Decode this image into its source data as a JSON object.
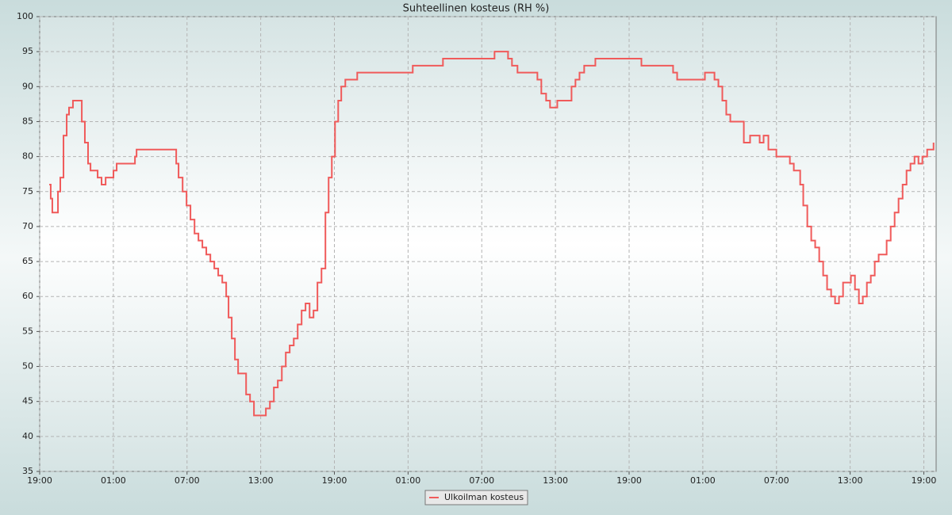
{
  "chart_data": {
    "type": "line",
    "title": "Suhteellinen kosteus (RH %)",
    "x": [
      0.78,
      0.9,
      1.03,
      1.36,
      1.49,
      1.68,
      1.94,
      2.2,
      2.39,
      2.71,
      3.23,
      3.43,
      3.68,
      3.94,
      4.14,
      4.59,
      4.72,
      5.04,
      5.37,
      6.01,
      6.27,
      7.43,
      7.76,
      7.89,
      10.86,
      11.12,
      11.31,
      11.64,
      11.96,
      12.28,
      12.61,
      12.93,
      13.25,
      13.57,
      13.9,
      14.22,
      14.54,
      14.87,
      15.19,
      15.38,
      15.64,
      15.9,
      16.16,
      16.48,
      16.81,
      17.13,
      17.45,
      17.78,
      18.1,
      18.42,
      18.75,
      19.07,
      19.39,
      19.72,
      20.04,
      20.36,
      20.69,
      21.01,
      21.33,
      21.65,
      21.98,
      22.3,
      22.62,
      22.95,
      23.27,
      23.53,
      23.79,
      24.05,
      24.31,
      24.56,
      24.89,
      25.53,
      25.86,
      30.06,
      30.38,
      32.64,
      32.84,
      36.85,
      37.04,
      37.94,
      38.14,
      38.46,
      38.91,
      40.27,
      40.53,
      40.85,
      41.24,
      41.56,
      42.15,
      43.05,
      43.31,
      43.63,
      43.96,
      44.34,
      45.12,
      45.25,
      48.8,
      49.0,
      51.39,
      51.58,
      51.91,
      53.01,
      53.65,
      54.17,
      54.62,
      54.95,
      55.27,
      55.59,
      55.91,
      56.24,
      57.08,
      57.34,
      57.85,
      58.63,
      58.95,
      59.34,
      59.79,
      59.99,
      60.76,
      61.09,
      61.41,
      61.73,
      61.93,
      62.18,
      62.51,
      62.83,
      63.15,
      63.48,
      63.8,
      64.12,
      64.45,
      64.77,
      65.09,
      65.42,
      65.74,
      66.06,
      66.39,
      66.71,
      67.03,
      67.36,
      67.68,
      68.0,
      68.32,
      68.65,
      68.97,
      69.3,
      69.62,
      69.94,
      70.27,
      70.59,
      70.91,
      71.24,
      71.56,
      71.88,
      72.27,
      72.53,
      72.79
    ],
    "series": [
      {
        "name": "Ulkoilman kosteus",
        "color": "#f05a5a",
        "values": [
          76,
          74,
          72,
          72,
          75,
          77,
          83,
          86,
          87,
          88,
          88,
          85,
          82,
          79,
          78,
          78,
          77,
          76,
          77,
          78,
          79,
          79,
          80,
          81,
          81,
          79,
          77,
          75,
          73,
          71,
          69,
          68,
          67,
          66,
          65,
          64,
          63,
          62,
          60,
          57,
          54,
          51,
          49,
          49,
          46,
          45,
          43,
          43,
          43,
          44,
          45,
          47,
          48,
          50,
          52,
          53,
          54,
          56,
          58,
          59,
          57,
          58,
          62,
          64,
          72,
          77,
          80,
          85,
          88,
          90,
          91,
          91,
          92,
          92,
          93,
          93,
          94,
          94,
          95,
          95,
          94,
          93,
          92,
          92,
          91,
          89,
          88,
          87,
          88,
          88,
          90,
          91,
          92,
          93,
          93,
          94,
          94,
          93,
          93,
          92,
          91,
          91,
          91,
          92,
          92,
          91,
          90,
          88,
          86,
          85,
          85,
          82,
          83,
          82,
          83,
          81,
          81,
          80,
          80,
          79,
          78,
          78,
          76,
          73,
          70,
          68,
          67,
          65,
          63,
          61,
          60,
          59,
          60,
          62,
          62,
          63,
          61,
          59,
          60,
          62,
          63,
          65,
          66,
          66,
          68,
          70,
          72,
          74,
          76,
          78,
          79,
          80,
          79,
          80,
          81,
          81,
          82
        ]
      }
    ],
    "xlim": [
      0,
      73
    ],
    "xticks": [
      {
        "value": 0,
        "label": "19:00"
      },
      {
        "value": 6,
        "label": "01:00"
      },
      {
        "value": 12,
        "label": "07:00"
      },
      {
        "value": 18,
        "label": "13:00"
      },
      {
        "value": 24,
        "label": "19:00"
      },
      {
        "value": 30,
        "label": "01:00"
      },
      {
        "value": 36,
        "label": "07:00"
      },
      {
        "value": 42,
        "label": "13:00"
      },
      {
        "value": 48,
        "label": "19:00"
      },
      {
        "value": 54,
        "label": "01:00"
      },
      {
        "value": 60,
        "label": "07:00"
      },
      {
        "value": 66,
        "label": "13:00"
      },
      {
        "value": 72,
        "label": "19:00"
      }
    ],
    "ylim": [
      35,
      100
    ],
    "yticks": [
      35,
      40,
      45,
      50,
      55,
      60,
      65,
      70,
      75,
      80,
      85,
      90,
      95,
      100
    ],
    "grid": true,
    "legend": "bottom"
  }
}
